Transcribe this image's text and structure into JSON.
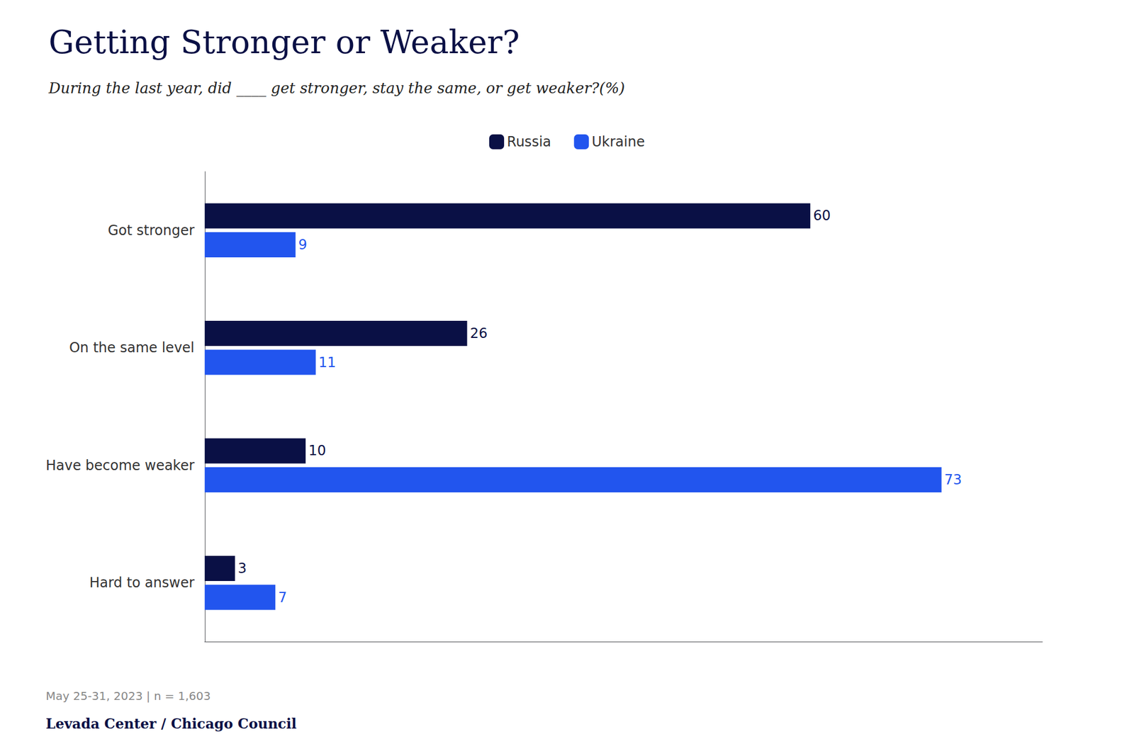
{
  "chart_data": {
    "type": "bar",
    "orientation": "horizontal",
    "title": "Getting Stronger or Weaker?",
    "subtitle": "During the last year, did ____ get stronger, stay the same, or get weaker?(%)",
    "categories": [
      "Got stronger",
      "On the same level",
      "Have become weaker",
      "Hard to answer"
    ],
    "series": [
      {
        "name": "Russia",
        "color": "#0a1045",
        "values": [
          60,
          26,
          10,
          3
        ]
      },
      {
        "name": "Ukraine",
        "color": "#2255ee",
        "values": [
          9,
          11,
          73,
          7
        ]
      }
    ],
    "xlim": [
      0,
      83
    ],
    "tick_labels": "y",
    "grid": false,
    "legend": "top",
    "data_labels": true,
    "annotations": [
      "May 25-31, 2023 | n = 1,603",
      "Levada Center / Chicago Council"
    ]
  }
}
